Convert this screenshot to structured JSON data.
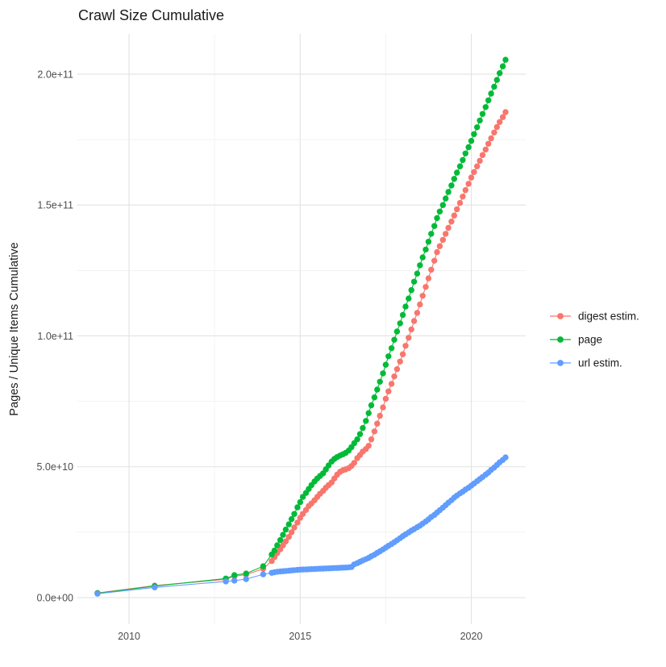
{
  "title": "Crawl Size Cumulative",
  "axes": {
    "y_label": "Pages / Unique Items Cumulative",
    "x_label": "",
    "y_ticks": [
      {
        "label": "0.0e+00",
        "value": 0
      },
      {
        "label": "5.0e+10",
        "value": 50
      },
      {
        "label": "1.0e+11",
        "value": 100
      },
      {
        "label": "1.5e+11",
        "value": 150
      },
      {
        "label": "2.0e+11",
        "value": 200
      }
    ],
    "x_ticks": [
      {
        "label": "2010",
        "value": 2010
      },
      {
        "label": "2015",
        "value": 2015
      },
      {
        "label": "2020",
        "value": 2020
      }
    ]
  },
  "legend": {
    "items": [
      {
        "label": "digest estim.",
        "color": "#F8766D"
      },
      {
        "label": "page",
        "color": "#00BA38"
      },
      {
        "label": "url estim.",
        "color": "#619CFF"
      }
    ]
  },
  "colors": {
    "digest": "#F8766D",
    "page": "#00BA38",
    "url": "#619CFF",
    "grid_major": "#e2e2e2",
    "grid_minor": "#efefef",
    "tick_text": "#4d4d4d",
    "title_text": "#1a1a1a",
    "background": "#ffffff"
  },
  "chart_data": {
    "type": "line",
    "title": "Crawl Size Cumulative",
    "xlabel": "",
    "ylabel": "Pages / Unique Items Cumulative",
    "x_unit": "decimal year",
    "y_unit_multiplier": 1000000000.0,
    "y_values_in": "billions",
    "xlim": [
      2008.5,
      2021.6
    ],
    "ylim_billions": [
      -10,
      215
    ],
    "x_major_ticks": [
      2010,
      2015,
      2020
    ],
    "x_minor_ticks": [
      2012.5,
      2017.5
    ],
    "y_major_ticks_billions": [
      0,
      50,
      100,
      150,
      200
    ],
    "y_minor_ticks_billions": [
      25,
      75,
      125,
      175
    ],
    "grid": true,
    "legend_position": "right",
    "marker": "point",
    "series": [
      {
        "name": "digest estim.",
        "color": "#F8766D",
        "points": [
          [
            2009.08,
            1.8
          ],
          [
            2010.75,
            4.6
          ],
          [
            2012.83,
            7.0
          ],
          [
            2013.08,
            8.2
          ],
          [
            2013.42,
            8.8
          ],
          [
            2013.92,
            11.0
          ],
          [
            2014.17,
            14.0
          ],
          [
            2014.25,
            15.5
          ],
          [
            2014.33,
            17.0
          ],
          [
            2014.42,
            18.5
          ],
          [
            2014.5,
            20.0
          ],
          [
            2014.58,
            21.5
          ],
          [
            2014.67,
            23.2
          ],
          [
            2014.75,
            25.0
          ],
          [
            2014.83,
            26.8
          ],
          [
            2014.92,
            28.7
          ],
          [
            2015.0,
            30.5
          ],
          [
            2015.08,
            32.0
          ],
          [
            2015.17,
            33.5
          ],
          [
            2015.25,
            35.0
          ],
          [
            2015.33,
            36.0
          ],
          [
            2015.42,
            37.2
          ],
          [
            2015.5,
            38.5
          ],
          [
            2015.58,
            39.7
          ],
          [
            2015.67,
            40.8
          ],
          [
            2015.75,
            42.0
          ],
          [
            2015.83,
            43.0
          ],
          [
            2015.92,
            44.0
          ],
          [
            2016.0,
            45.5
          ],
          [
            2016.08,
            47.0
          ],
          [
            2016.17,
            48.1
          ],
          [
            2016.25,
            48.7
          ],
          [
            2016.33,
            49.0
          ],
          [
            2016.42,
            49.5
          ],
          [
            2016.5,
            50.3
          ],
          [
            2016.58,
            51.5
          ],
          [
            2016.67,
            53.3
          ],
          [
            2016.75,
            54.5
          ],
          [
            2016.83,
            55.8
          ],
          [
            2016.92,
            56.8
          ],
          [
            2017.0,
            58.0
          ],
          [
            2017.08,
            60.5
          ],
          [
            2017.17,
            63.5
          ],
          [
            2017.25,
            66.5
          ],
          [
            2017.33,
            69.5
          ],
          [
            2017.42,
            72.7
          ],
          [
            2017.5,
            76.0
          ],
          [
            2017.58,
            78.8
          ],
          [
            2017.67,
            81.7
          ],
          [
            2017.75,
            84.5
          ],
          [
            2017.83,
            87.3
          ],
          [
            2017.92,
            90.2
          ],
          [
            2018.0,
            93.0
          ],
          [
            2018.08,
            96.2
          ],
          [
            2018.17,
            99.3
          ],
          [
            2018.25,
            102.5
          ],
          [
            2018.33,
            105.7
          ],
          [
            2018.42,
            108.8
          ],
          [
            2018.5,
            112.0
          ],
          [
            2018.58,
            115.3
          ],
          [
            2018.67,
            118.7
          ],
          [
            2018.75,
            122.0
          ],
          [
            2018.83,
            125.3
          ],
          [
            2018.92,
            128.7
          ],
          [
            2019.0,
            132.0
          ],
          [
            2019.08,
            134.3
          ],
          [
            2019.17,
            136.7
          ],
          [
            2019.25,
            139.0
          ],
          [
            2019.33,
            141.3
          ],
          [
            2019.42,
            143.7
          ],
          [
            2019.5,
            146.0
          ],
          [
            2019.58,
            148.4
          ],
          [
            2019.67,
            150.8
          ],
          [
            2019.75,
            153.2
          ],
          [
            2019.83,
            155.7
          ],
          [
            2019.92,
            158.1
          ],
          [
            2020.0,
            160.5
          ],
          [
            2020.08,
            162.6
          ],
          [
            2020.17,
            164.8
          ],
          [
            2020.25,
            166.9
          ],
          [
            2020.33,
            169.1
          ],
          [
            2020.42,
            171.2
          ],
          [
            2020.5,
            173.4
          ],
          [
            2020.58,
            175.5
          ],
          [
            2020.67,
            177.7
          ],
          [
            2020.75,
            179.8
          ],
          [
            2020.83,
            181.7
          ],
          [
            2020.92,
            183.6
          ],
          [
            2021.0,
            185.5
          ]
        ]
      },
      {
        "name": "page",
        "color": "#00BA38",
        "points": [
          [
            2009.08,
            1.7
          ],
          [
            2010.75,
            4.4
          ],
          [
            2012.83,
            7.3
          ],
          [
            2013.08,
            8.6
          ],
          [
            2013.42,
            9.2
          ],
          [
            2013.92,
            12.0
          ],
          [
            2014.17,
            16.5
          ],
          [
            2014.25,
            18.0
          ],
          [
            2014.33,
            20.0
          ],
          [
            2014.42,
            22.0
          ],
          [
            2014.5,
            24.0
          ],
          [
            2014.58,
            26.0
          ],
          [
            2014.67,
            28.0
          ],
          [
            2014.75,
            30.0
          ],
          [
            2014.83,
            32.0
          ],
          [
            2014.92,
            34.5
          ],
          [
            2015.0,
            36.5
          ],
          [
            2015.08,
            38.5
          ],
          [
            2015.17,
            40.0
          ],
          [
            2015.25,
            41.5
          ],
          [
            2015.33,
            43.0
          ],
          [
            2015.42,
            44.4
          ],
          [
            2015.5,
            45.5
          ],
          [
            2015.58,
            46.5
          ],
          [
            2015.67,
            47.5
          ],
          [
            2015.75,
            49.0
          ],
          [
            2015.83,
            50.5
          ],
          [
            2015.92,
            52.0
          ],
          [
            2016.0,
            53.0
          ],
          [
            2016.08,
            53.7
          ],
          [
            2016.17,
            54.3
          ],
          [
            2016.25,
            54.8
          ],
          [
            2016.33,
            55.3
          ],
          [
            2016.42,
            56.2
          ],
          [
            2016.5,
            57.5
          ],
          [
            2016.58,
            59.0
          ],
          [
            2016.67,
            60.5
          ],
          [
            2016.75,
            62.5
          ],
          [
            2016.83,
            64.8
          ],
          [
            2016.92,
            67.5
          ],
          [
            2017.0,
            70.5
          ],
          [
            2017.08,
            73.5
          ],
          [
            2017.17,
            76.5
          ],
          [
            2017.25,
            79.5
          ],
          [
            2017.33,
            82.5
          ],
          [
            2017.42,
            85.7
          ],
          [
            2017.5,
            89.0
          ],
          [
            2017.58,
            92.2
          ],
          [
            2017.67,
            95.3
          ],
          [
            2017.75,
            98.5
          ],
          [
            2017.83,
            101.7
          ],
          [
            2017.92,
            104.8
          ],
          [
            2018.0,
            108.0
          ],
          [
            2018.08,
            111.2
          ],
          [
            2018.17,
            114.3
          ],
          [
            2018.25,
            117.5
          ],
          [
            2018.33,
            120.7
          ],
          [
            2018.42,
            123.8
          ],
          [
            2018.5,
            127.0
          ],
          [
            2018.58,
            130.0
          ],
          [
            2018.67,
            133.0
          ],
          [
            2018.75,
            136.0
          ],
          [
            2018.83,
            139.0
          ],
          [
            2018.92,
            142.0
          ],
          [
            2019.0,
            145.0
          ],
          [
            2019.08,
            147.5
          ],
          [
            2019.17,
            150.0
          ],
          [
            2019.25,
            152.5
          ],
          [
            2019.33,
            155.0
          ],
          [
            2019.42,
            157.5
          ],
          [
            2019.5,
            160.0
          ],
          [
            2019.58,
            162.4
          ],
          [
            2019.67,
            164.8
          ],
          [
            2019.75,
            167.2
          ],
          [
            2019.83,
            169.7
          ],
          [
            2019.92,
            172.1
          ],
          [
            2020.0,
            174.5
          ],
          [
            2020.08,
            177.1
          ],
          [
            2020.17,
            179.7
          ],
          [
            2020.25,
            182.3
          ],
          [
            2020.33,
            184.8
          ],
          [
            2020.42,
            187.4
          ],
          [
            2020.5,
            190.0
          ],
          [
            2020.58,
            192.6
          ],
          [
            2020.67,
            195.2
          ],
          [
            2020.75,
            197.8
          ],
          [
            2020.83,
            200.4
          ],
          [
            2020.92,
            203.0
          ],
          [
            2021.0,
            205.5
          ]
        ]
      },
      {
        "name": "url estim.",
        "color": "#619CFF",
        "points": [
          [
            2009.08,
            1.5
          ],
          [
            2010.75,
            3.9
          ],
          [
            2012.83,
            6.2
          ],
          [
            2013.08,
            6.5
          ],
          [
            2013.42,
            7.1
          ],
          [
            2013.92,
            8.9
          ],
          [
            2014.17,
            9.5
          ],
          [
            2014.25,
            9.7
          ],
          [
            2014.33,
            9.9
          ],
          [
            2014.42,
            10.0
          ],
          [
            2014.5,
            10.1
          ],
          [
            2014.58,
            10.2
          ],
          [
            2014.67,
            10.3
          ],
          [
            2014.75,
            10.4
          ],
          [
            2014.83,
            10.5
          ],
          [
            2014.92,
            10.6
          ],
          [
            2015.0,
            10.7
          ],
          [
            2015.08,
            10.75
          ],
          [
            2015.17,
            10.8
          ],
          [
            2015.25,
            10.85
          ],
          [
            2015.33,
            10.9
          ],
          [
            2015.42,
            10.95
          ],
          [
            2015.5,
            11.0
          ],
          [
            2015.58,
            11.05
          ],
          [
            2015.67,
            11.1
          ],
          [
            2015.75,
            11.15
          ],
          [
            2015.83,
            11.2
          ],
          [
            2015.92,
            11.25
          ],
          [
            2016.0,
            11.3
          ],
          [
            2016.08,
            11.35
          ],
          [
            2016.17,
            11.4
          ],
          [
            2016.25,
            11.45
          ],
          [
            2016.33,
            11.5
          ],
          [
            2016.42,
            11.6
          ],
          [
            2016.5,
            11.7
          ],
          [
            2016.58,
            12.7
          ],
          [
            2016.67,
            13.2
          ],
          [
            2016.75,
            13.7
          ],
          [
            2016.83,
            14.2
          ],
          [
            2016.92,
            14.7
          ],
          [
            2017.0,
            15.2
          ],
          [
            2017.08,
            15.8
          ],
          [
            2017.17,
            16.4
          ],
          [
            2017.25,
            17.1
          ],
          [
            2017.33,
            17.7
          ],
          [
            2017.42,
            18.4
          ],
          [
            2017.5,
            19.1
          ],
          [
            2017.58,
            19.8
          ],
          [
            2017.67,
            20.5
          ],
          [
            2017.75,
            21.2
          ],
          [
            2017.83,
            21.9
          ],
          [
            2017.92,
            22.7
          ],
          [
            2018.0,
            23.5
          ],
          [
            2018.08,
            24.2
          ],
          [
            2018.17,
            24.9
          ],
          [
            2018.25,
            25.6
          ],
          [
            2018.33,
            26.2
          ],
          [
            2018.42,
            26.9
          ],
          [
            2018.5,
            27.5
          ],
          [
            2018.58,
            28.3
          ],
          [
            2018.67,
            29.1
          ],
          [
            2018.75,
            29.9
          ],
          [
            2018.83,
            30.8
          ],
          [
            2018.92,
            31.6
          ],
          [
            2019.0,
            32.5
          ],
          [
            2019.08,
            33.4
          ],
          [
            2019.17,
            34.4
          ],
          [
            2019.25,
            35.3
          ],
          [
            2019.33,
            36.3
          ],
          [
            2019.42,
            37.2
          ],
          [
            2019.5,
            38.2
          ],
          [
            2019.58,
            39.0
          ],
          [
            2019.67,
            39.8
          ],
          [
            2019.75,
            40.5
          ],
          [
            2019.83,
            41.3
          ],
          [
            2019.92,
            42.0
          ],
          [
            2020.0,
            42.8
          ],
          [
            2020.08,
            43.6
          ],
          [
            2020.17,
            44.5
          ],
          [
            2020.25,
            45.3
          ],
          [
            2020.33,
            46.1
          ],
          [
            2020.42,
            47.0
          ],
          [
            2020.5,
            47.8
          ],
          [
            2020.58,
            48.8
          ],
          [
            2020.67,
            49.7
          ],
          [
            2020.75,
            50.7
          ],
          [
            2020.83,
            51.7
          ],
          [
            2020.92,
            52.6
          ],
          [
            2021.0,
            53.6
          ]
        ]
      }
    ]
  }
}
